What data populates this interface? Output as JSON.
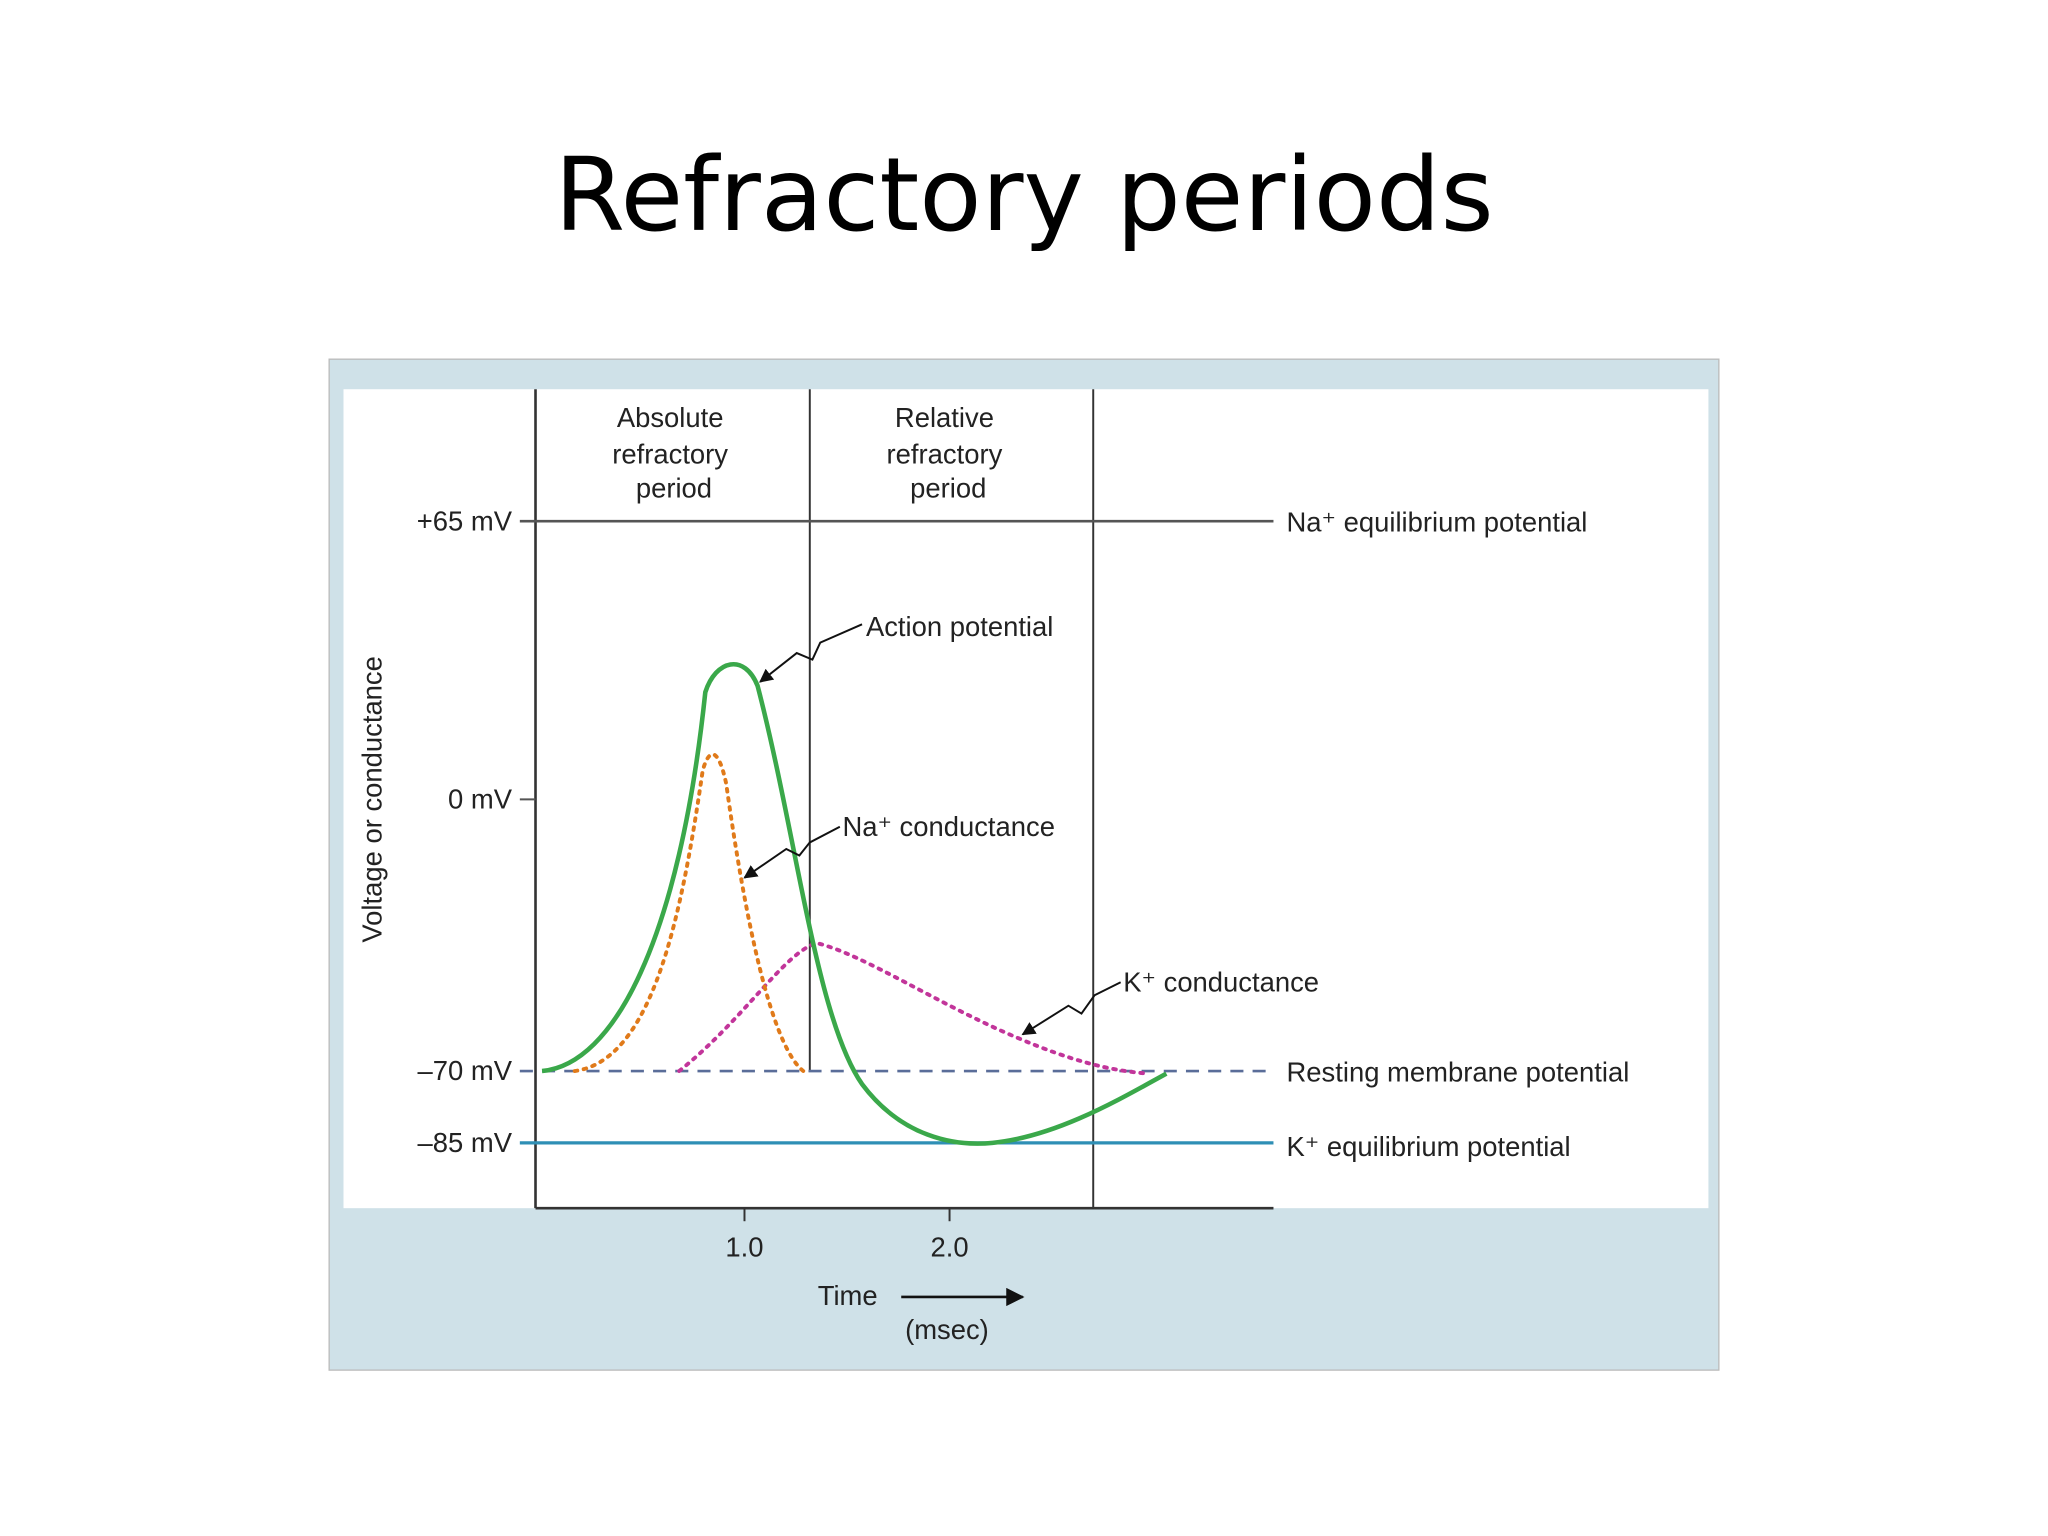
{
  "title": "Refractory periods",
  "diagram": {
    "period_labels": [
      [
        "Absolute",
        "refractory",
        "period"
      ],
      [
        "Relative",
        "refractory",
        "period"
      ]
    ],
    "y_ticks": [
      "+65 mV",
      "0 mV",
      "–70 mV",
      "–85 mV"
    ],
    "y_axis_label": "Voltage or conductance",
    "x_ticks": [
      "1.0",
      "2.0"
    ],
    "x_axis_label": "Time",
    "x_axis_unit": "(msec)",
    "curve_labels": [
      "Action potential",
      "Na⁺ conductance",
      "K⁺ conductance"
    ],
    "reference_labels": [
      "Na⁺ equilibrium potential",
      "Resting membrane potential",
      "K⁺ equilibrium potential"
    ]
  }
}
